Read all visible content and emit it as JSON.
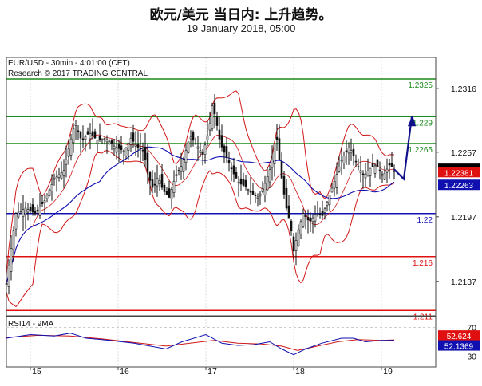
{
  "header": {
    "title": "欧元/美元 当日内: 上升趋势。",
    "subtitle": "19 January 2018, 05:00"
  },
  "chart_data": [
    {
      "type": "candlestick",
      "info_line1": "EUR/USD - 30min - 4:01:00 (CET)",
      "info_line2": "Research © 2017 TRADING CENTRAL",
      "ylim": [
        1.2105,
        1.2345
      ],
      "yticks": [
        "1.2316",
        "1.2257",
        "1.2197",
        "1.2137"
      ],
      "xticks": [
        "15",
        "16",
        "17",
        "18",
        "19"
      ],
      "levels": [
        {
          "value": 1.2325,
          "label": "1.2325",
          "color": "#1a8a1a"
        },
        {
          "value": 1.229,
          "label": "1.229",
          "color": "#1a8a1a"
        },
        {
          "value": 1.2265,
          "label": "1.2265",
          "color": "#1a8a1a"
        },
        {
          "value": 1.22,
          "label": "1.22",
          "color": "#1010b0"
        },
        {
          "value": 1.216,
          "label": "1.216",
          "color": "#e01010"
        },
        {
          "value": 1.211,
          "label": "1.211",
          "color": "#e01010"
        }
      ],
      "price_tags": [
        {
          "value": 1.22412,
          "label": "1.22412",
          "bg": "#000000"
        },
        {
          "value": 1.22381,
          "label": "1.22381",
          "bg": "#e01010"
        },
        {
          "value": 1.22263,
          "label": "1.22263",
          "bg": "#1010b0"
        }
      ],
      "price_path": [
        [
          0,
          1.2135
        ],
        [
          12,
          1.22
        ],
        [
          24,
          1.2205
        ],
        [
          36,
          1.22
        ],
        [
          48,
          1.2212
        ],
        [
          60,
          1.2232
        ],
        [
          72,
          1.224
        ],
        [
          78,
          1.226
        ],
        [
          86,
          1.2285
        ],
        [
          94,
          1.2268
        ],
        [
          104,
          1.2275
        ],
        [
          114,
          1.2268
        ],
        [
          124,
          1.227
        ],
        [
          136,
          1.2262
        ],
        [
          148,
          1.2258
        ],
        [
          156,
          1.227
        ],
        [
          164,
          1.2262
        ],
        [
          172,
          1.2258
        ],
        [
          178,
          1.2235
        ],
        [
          184,
          1.2222
        ],
        [
          190,
          1.2235
        ],
        [
          196,
          1.2222
        ],
        [
          204,
          1.2215
        ],
        [
          212,
          1.2235
        ],
        [
          220,
          1.2245
        ],
        [
          230,
          1.2272
        ],
        [
          240,
          1.2262
        ],
        [
          246,
          1.2255
        ],
        [
          254,
          1.2278
        ],
        [
          258,
          1.23
        ],
        [
          262,
          1.229
        ],
        [
          268,
          1.2265
        ],
        [
          276,
          1.2252
        ],
        [
          284,
          1.2238
        ],
        [
          292,
          1.2228
        ],
        [
          300,
          1.2225
        ],
        [
          308,
          1.2218
        ],
        [
          316,
          1.2215
        ],
        [
          324,
          1.2228
        ],
        [
          332,
          1.2245
        ],
        [
          338,
          1.2275
        ],
        [
          344,
          1.2238
        ],
        [
          350,
          1.2208
        ],
        [
          356,
          1.219
        ],
        [
          360,
          1.2165
        ],
        [
          366,
          1.2185
        ],
        [
          372,
          1.22
        ],
        [
          380,
          1.2192
        ],
        [
          388,
          1.22
        ],
        [
          396,
          1.2198
        ],
        [
          404,
          1.2215
        ],
        [
          412,
          1.2232
        ],
        [
          420,
          1.225
        ],
        [
          430,
          1.2262
        ],
        [
          440,
          1.2245
        ],
        [
          448,
          1.2235
        ],
        [
          456,
          1.2242
        ],
        [
          464,
          1.2245
        ],
        [
          472,
          1.2235
        ],
        [
          480,
          1.2245
        ],
        [
          486,
          1.2241
        ]
      ],
      "forecast": [
        [
          486,
          1.2241
        ],
        [
          498,
          1.2232
        ],
        [
          508,
          1.229
        ]
      ],
      "rsi": {
        "label": "RSI14 - 9MA",
        "yticks": [
          "70",
          "30"
        ],
        "tags": [
          {
            "value": 52.624,
            "label": "52.624",
            "bg": "#e01010"
          },
          {
            "value": 52.1369,
            "label": "52.1369",
            "bg": "#1010b0"
          }
        ],
        "rsi_path": [
          [
            0,
            55
          ],
          [
            30,
            60
          ],
          [
            60,
            58
          ],
          [
            80,
            62
          ],
          [
            100,
            55
          ],
          [
            130,
            52
          ],
          [
            160,
            48
          ],
          [
            180,
            44
          ],
          [
            200,
            40
          ],
          [
            220,
            50
          ],
          [
            250,
            60
          ],
          [
            270,
            48
          ],
          [
            290,
            45
          ],
          [
            310,
            46
          ],
          [
            330,
            50
          ],
          [
            345,
            40
          ],
          [
            360,
            32
          ],
          [
            375,
            40
          ],
          [
            395,
            48
          ],
          [
            420,
            55
          ],
          [
            435,
            55
          ],
          [
            450,
            50
          ],
          [
            470,
            52
          ],
          [
            486,
            52
          ]
        ],
        "ma_path": [
          [
            0,
            56
          ],
          [
            40,
            59
          ],
          [
            80,
            58
          ],
          [
            120,
            54
          ],
          [
            160,
            49
          ],
          [
            200,
            44
          ],
          [
            230,
            48
          ],
          [
            260,
            52
          ],
          [
            290,
            48
          ],
          [
            320,
            47
          ],
          [
            345,
            44
          ],
          [
            365,
            38
          ],
          [
            390,
            44
          ],
          [
            415,
            50
          ],
          [
            440,
            53
          ],
          [
            470,
            52
          ],
          [
            486,
            52.6
          ]
        ]
      }
    }
  ]
}
